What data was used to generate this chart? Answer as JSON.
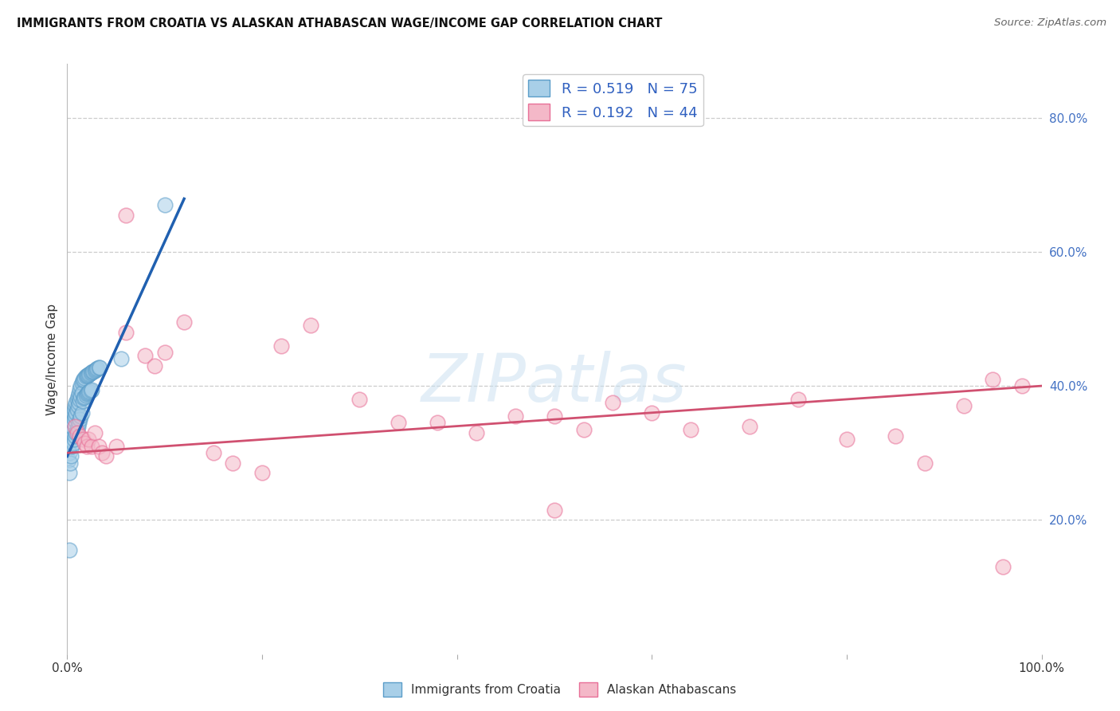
{
  "title": "IMMIGRANTS FROM CROATIA VS ALASKAN ATHABASCAN WAGE/INCOME GAP CORRELATION CHART",
  "source": "Source: ZipAtlas.com",
  "ylabel": "Wage/Income Gap",
  "xlim": [
    0,
    1.0
  ],
  "ylim": [
    0,
    0.88
  ],
  "xtick_positions": [
    0.0,
    0.2,
    0.4,
    0.6,
    0.8,
    1.0
  ],
  "xtick_labels": [
    "0.0%",
    "",
    "",
    "",
    "",
    "100.0%"
  ],
  "ytick_vals": [
    0.2,
    0.4,
    0.6,
    0.8
  ],
  "ytick_labels": [
    "20.0%",
    "40.0%",
    "60.0%",
    "80.0%"
  ],
  "blue_color": "#a8cfe8",
  "pink_color": "#f4b8c8",
  "blue_edge": "#5b9dc9",
  "pink_edge": "#e87098",
  "trend_blue": "#2060b0",
  "trend_pink": "#d05070",
  "background_color": "#ffffff",
  "grid_color": "#cccccc",
  "blue_x": [
    0.001,
    0.001,
    0.002,
    0.002,
    0.002,
    0.003,
    0.003,
    0.003,
    0.004,
    0.004,
    0.004,
    0.005,
    0.005,
    0.005,
    0.006,
    0.006,
    0.006,
    0.007,
    0.007,
    0.007,
    0.008,
    0.008,
    0.008,
    0.009,
    0.009,
    0.009,
    0.01,
    0.01,
    0.01,
    0.011,
    0.011,
    0.011,
    0.012,
    0.012,
    0.012,
    0.013,
    0.013,
    0.013,
    0.014,
    0.014,
    0.014,
    0.015,
    0.015,
    0.015,
    0.016,
    0.016,
    0.017,
    0.017,
    0.018,
    0.018,
    0.019,
    0.019,
    0.02,
    0.02,
    0.021,
    0.021,
    0.022,
    0.022,
    0.023,
    0.023,
    0.024,
    0.024,
    0.025,
    0.025,
    0.026,
    0.027,
    0.028,
    0.029,
    0.03,
    0.031,
    0.032,
    0.033,
    0.002,
    0.055,
    0.1
  ],
  "blue_y": [
    0.31,
    0.29,
    0.33,
    0.3,
    0.27,
    0.34,
    0.32,
    0.285,
    0.35,
    0.33,
    0.295,
    0.355,
    0.34,
    0.31,
    0.36,
    0.345,
    0.315,
    0.365,
    0.35,
    0.32,
    0.37,
    0.355,
    0.325,
    0.375,
    0.36,
    0.33,
    0.38,
    0.365,
    0.335,
    0.385,
    0.37,
    0.34,
    0.39,
    0.375,
    0.345,
    0.395,
    0.38,
    0.35,
    0.4,
    0.385,
    0.355,
    0.405,
    0.39,
    0.36,
    0.408,
    0.378,
    0.41,
    0.382,
    0.412,
    0.384,
    0.414,
    0.386,
    0.415,
    0.388,
    0.416,
    0.389,
    0.417,
    0.391,
    0.418,
    0.392,
    0.419,
    0.393,
    0.42,
    0.394,
    0.421,
    0.422,
    0.423,
    0.424,
    0.425,
    0.426,
    0.427,
    0.428,
    0.155,
    0.44,
    0.67
  ],
  "pink_x": [
    0.008,
    0.01,
    0.013,
    0.016,
    0.018,
    0.02,
    0.022,
    0.025,
    0.028,
    0.032,
    0.036,
    0.04,
    0.05,
    0.06,
    0.08,
    0.1,
    0.12,
    0.15,
    0.17,
    0.2,
    0.22,
    0.25,
    0.3,
    0.34,
    0.38,
    0.42,
    0.46,
    0.5,
    0.53,
    0.56,
    0.6,
    0.64,
    0.7,
    0.75,
    0.8,
    0.85,
    0.88,
    0.92,
    0.95,
    0.98,
    0.06,
    0.09,
    0.5,
    0.96
  ],
  "pink_y": [
    0.34,
    0.33,
    0.325,
    0.32,
    0.315,
    0.31,
    0.32,
    0.31,
    0.33,
    0.31,
    0.3,
    0.295,
    0.31,
    0.48,
    0.445,
    0.45,
    0.495,
    0.3,
    0.285,
    0.27,
    0.46,
    0.49,
    0.38,
    0.345,
    0.345,
    0.33,
    0.355,
    0.355,
    0.335,
    0.375,
    0.36,
    0.335,
    0.34,
    0.38,
    0.32,
    0.325,
    0.285,
    0.37,
    0.41,
    0.4,
    0.655,
    0.43,
    0.215,
    0.13
  ],
  "watermark_text": "ZIPatlas",
  "legend1_label": "R = 0.519   N = 75",
  "legend2_label": "R = 0.192   N = 44"
}
